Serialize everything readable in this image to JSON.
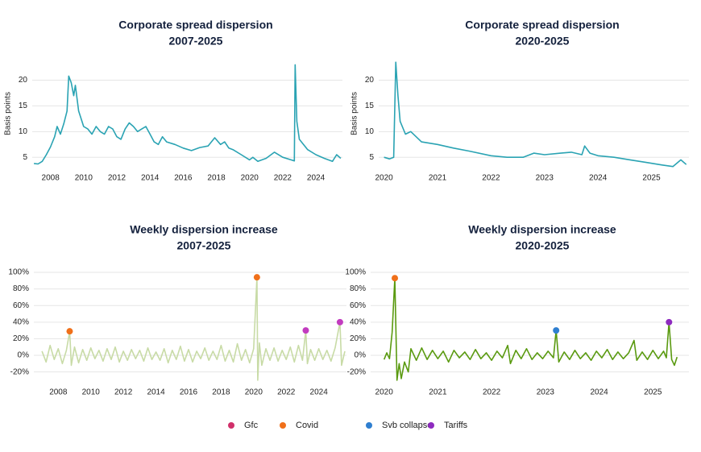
{
  "chart_data": [
    {
      "type": "line",
      "title": "Corporate spread dispersion",
      "subtitle": "2007-2025",
      "y_label": "Basis points",
      "xlim": [
        2006.9,
        2025.6
      ],
      "xticks": [
        2008,
        2010,
        2012,
        2014,
        2016,
        2018,
        2020,
        2022,
        2024
      ],
      "ylim": [
        3,
        24
      ],
      "yticks": [
        5,
        10,
        15,
        20
      ],
      "grid": true,
      "series": [
        {
          "color": "#2aa3b3",
          "x": [
            2007.0,
            2007.25,
            2007.5,
            2007.75,
            2008.0,
            2008.25,
            2008.4,
            2008.6,
            2008.8,
            2009.0,
            2009.1,
            2009.25,
            2009.4,
            2009.5,
            2009.7,
            2010.0,
            2010.25,
            2010.5,
            2010.75,
            2011.0,
            2011.25,
            2011.5,
            2011.75,
            2012.0,
            2012.25,
            2012.5,
            2012.75,
            2013.0,
            2013.25,
            2013.5,
            2013.75,
            2014.0,
            2014.25,
            2014.5,
            2014.75,
            2015.0,
            2015.5,
            2016.0,
            2016.5,
            2017.0,
            2017.5,
            2017.9,
            2018.25,
            2018.5,
            2018.75,
            2019.0,
            2019.5,
            2020.0,
            2020.2,
            2020.5,
            2020.75,
            2021.0,
            2021.5,
            2022.0,
            2022.5,
            2022.7,
            2022.75,
            2022.85,
            2023.0,
            2023.25,
            2023.5,
            2024.0,
            2024.5,
            2025.0,
            2025.25,
            2025.5
          ],
          "values": [
            3.8,
            3.7,
            4.2,
            5.5,
            7.0,
            9.0,
            11.0,
            9.5,
            11.5,
            14.0,
            20.8,
            19.5,
            17.0,
            19.0,
            14.0,
            11.0,
            10.5,
            9.5,
            11.0,
            10.0,
            9.5,
            11.0,
            10.5,
            9.0,
            8.5,
            10.5,
            11.7,
            11.0,
            10.0,
            10.5,
            11.0,
            9.5,
            8.0,
            7.5,
            9.0,
            8.0,
            7.5,
            6.8,
            6.3,
            6.9,
            7.2,
            8.8,
            7.5,
            8.0,
            6.8,
            6.5,
            5.5,
            4.5,
            5.0,
            4.2,
            4.5,
            4.8,
            6.0,
            5.0,
            4.5,
            4.3,
            23.0,
            12.0,
            8.5,
            7.5,
            6.5,
            5.5,
            4.8,
            4.2,
            5.5,
            4.8
          ]
        }
      ]
    },
    {
      "type": "line",
      "title": "Corporate spread dispersion",
      "subtitle": "2020-2025",
      "y_label": "Basis points",
      "xlim": [
        2019.9,
        2025.7
      ],
      "xticks": [
        2020,
        2021,
        2022,
        2023,
        2024,
        2025
      ],
      "ylim": [
        3,
        24
      ],
      "yticks": [
        5,
        10,
        15,
        20
      ],
      "grid": true,
      "series": [
        {
          "color": "#2aa3b3",
          "x": [
            2020.0,
            2020.1,
            2020.18,
            2020.22,
            2020.26,
            2020.3,
            2020.4,
            2020.5,
            2020.7,
            2021.0,
            2021.3,
            2021.6,
            2022.0,
            2022.3,
            2022.6,
            2022.8,
            2023.0,
            2023.3,
            2023.5,
            2023.7,
            2023.75,
            2023.85,
            2024.0,
            2024.3,
            2024.6,
            2024.9,
            2025.2,
            2025.4,
            2025.55,
            2025.65
          ],
          "values": [
            5.0,
            4.7,
            5.0,
            23.5,
            17.0,
            12.0,
            9.5,
            10.0,
            8.0,
            7.5,
            6.8,
            6.2,
            5.3,
            5.0,
            5.0,
            5.8,
            5.5,
            5.8,
            6.0,
            5.5,
            7.2,
            5.8,
            5.3,
            5.0,
            4.5,
            4.0,
            3.5,
            3.2,
            4.5,
            3.6
          ]
        }
      ]
    },
    {
      "type": "line",
      "title": "Weekly dispersion increase",
      "subtitle": "2007-2025",
      "xlim": [
        2006.5,
        2025.7
      ],
      "xticks": [
        2008,
        2010,
        2012,
        2014,
        2016,
        2018,
        2020,
        2022,
        2024
      ],
      "ylim": [
        -32,
        100
      ],
      "yticks": [
        {
          "value": -20,
          "label": "-20%"
        },
        {
          "value": 0,
          "label": "0%"
        },
        {
          "value": 20,
          "label": "20%"
        },
        {
          "value": 40,
          "label": "40%"
        },
        {
          "value": 60,
          "label": "60%"
        },
        {
          "value": 80,
          "label": "80%"
        },
        {
          "value": 100,
          "label": "100%"
        }
      ],
      "grid": true,
      "series": [
        {
          "color": "#c8dba6",
          "x": [
            2007,
            2007.25,
            2007.5,
            2007.75,
            2008,
            2008.25,
            2008.5,
            2008.7,
            2008.8,
            2009,
            2009.25,
            2009.5,
            2009.75,
            2010,
            2010.25,
            2010.5,
            2010.75,
            2011,
            2011.25,
            2011.5,
            2011.75,
            2012,
            2012.25,
            2012.5,
            2012.75,
            2013,
            2013.25,
            2013.5,
            2013.75,
            2014,
            2014.25,
            2014.5,
            2014.75,
            2015,
            2015.25,
            2015.5,
            2015.75,
            2016,
            2016.25,
            2016.5,
            2016.75,
            2017,
            2017.25,
            2017.5,
            2017.75,
            2018,
            2018.25,
            2018.5,
            2018.75,
            2019,
            2019.25,
            2019.5,
            2019.75,
            2020,
            2020.2,
            2020.25,
            2020.35,
            2020.5,
            2020.75,
            2021,
            2021.25,
            2021.5,
            2021.75,
            2022,
            2022.25,
            2022.5,
            2022.75,
            2023,
            2023.2,
            2023.3,
            2023.5,
            2023.75,
            2024,
            2024.25,
            2024.5,
            2024.75,
            2025,
            2025.3,
            2025.4,
            2025.6
          ],
          "values": [
            5,
            -8,
            12,
            -5,
            8,
            -10,
            6,
            29,
            -12,
            10,
            -9,
            7,
            -6,
            9,
            -4,
            6,
            -7,
            8,
            -5,
            10,
            -8,
            5,
            -6,
            7,
            -4,
            6,
            -7,
            9,
            -5,
            4,
            -6,
            8,
            -9,
            6,
            -5,
            11,
            -7,
            7,
            -8,
            5,
            -4,
            9,
            -6,
            5,
            -5,
            12,
            -7,
            6,
            -8,
            14,
            -6,
            7,
            -9,
            8,
            94,
            -30,
            15,
            -12,
            8,
            -6,
            9,
            -7,
            6,
            -5,
            10,
            -8,
            12,
            -6,
            30,
            -10,
            7,
            -6,
            8,
            -5,
            6,
            -7,
            9,
            40,
            -12,
            5
          ]
        }
      ],
      "markers": [
        {
          "x": 2008.7,
          "value": 29,
          "color": "#f0701a"
        },
        {
          "x": 2020.2,
          "value": 94,
          "color": "#f0701a"
        },
        {
          "x": 2023.2,
          "value": 30,
          "color": "#c23bbf"
        },
        {
          "x": 2025.3,
          "value": 40,
          "color": "#c23bbf"
        }
      ]
    },
    {
      "type": "line",
      "title": "Weekly dispersion increase",
      "subtitle": "2020-2025",
      "xlim": [
        2019.75,
        2025.67
      ],
      "xticks": [
        2020,
        2021,
        2022,
        2023,
        2024,
        2025
      ],
      "ylim": [
        -32,
        100
      ],
      "yticks": [
        {
          "value": -20,
          "label": "-20%"
        },
        {
          "value": 0,
          "label": "0%"
        },
        {
          "value": 20,
          "label": "20%"
        },
        {
          "value": 40,
          "label": "40%"
        },
        {
          "value": 60,
          "label": "60%"
        },
        {
          "value": 80,
          "label": "80%"
        },
        {
          "value": 100,
          "label": "100%"
        }
      ],
      "grid": true,
      "series": [
        {
          "color": "#5a9a10",
          "x": [
            2020,
            2020.05,
            2020.1,
            2020.15,
            2020.2,
            2020.24,
            2020.28,
            2020.32,
            2020.38,
            2020.45,
            2020.5,
            2020.6,
            2020.7,
            2020.8,
            2020.9,
            2021,
            2021.1,
            2021.2,
            2021.3,
            2021.4,
            2021.5,
            2021.6,
            2021.7,
            2021.8,
            2021.9,
            2022,
            2022.1,
            2022.2,
            2022.3,
            2022.35,
            2022.45,
            2022.55,
            2022.65,
            2022.75,
            2022.85,
            2022.95,
            2023.05,
            2023.15,
            2023.2,
            2023.25,
            2023.35,
            2023.45,
            2023.55,
            2023.65,
            2023.75,
            2023.85,
            2023.95,
            2024.05,
            2024.15,
            2024.25,
            2024.35,
            2024.45,
            2024.55,
            2024.65,
            2024.7,
            2024.8,
            2024.9,
            2025,
            2025.1,
            2025.2,
            2025.25,
            2025.3,
            2025.35,
            2025.4,
            2025.45
          ],
          "values": [
            -5,
            3,
            -4,
            28,
            93,
            -30,
            -10,
            -28,
            -8,
            -20,
            8,
            -6,
            9,
            -5,
            6,
            -4,
            5,
            -8,
            6,
            -3,
            4,
            -5,
            7,
            -4,
            3,
            -6,
            5,
            -3,
            12,
            -10,
            6,
            -4,
            8,
            -5,
            3,
            -4,
            5,
            -3,
            30,
            -8,
            4,
            -5,
            6,
            -4,
            3,
            -6,
            5,
            -3,
            7,
            -5,
            4,
            -4,
            3,
            18,
            -6,
            4,
            -5,
            6,
            -4,
            5,
            -3,
            40,
            -5,
            -12,
            -2
          ]
        }
      ],
      "markers": [
        {
          "x": 2020.2,
          "value": 93,
          "color": "#f0701a"
        },
        {
          "x": 2023.2,
          "value": 30,
          "color": "#2f7fd0"
        },
        {
          "x": 2025.3,
          "value": 40,
          "color": "#8e2bbf"
        }
      ]
    }
  ],
  "legend": [
    {
      "name": "Gfc",
      "color": "#d1306a"
    },
    {
      "name": "Covid",
      "color": "#f0701a"
    },
    {
      "name": "Svb collapse",
      "color": "#2f7fd0"
    },
    {
      "name": "Tariffs",
      "color": "#8e2bbf"
    }
  ]
}
